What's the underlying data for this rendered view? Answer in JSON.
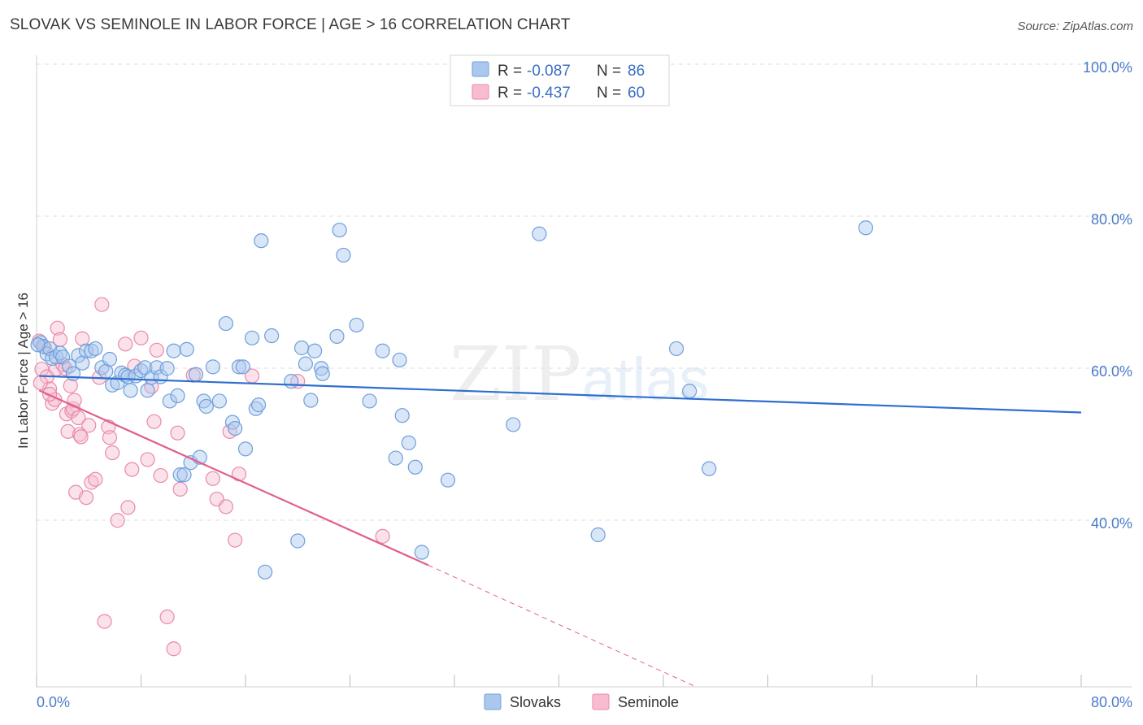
{
  "title": "SLOVAK VS SEMINOLE IN LABOR FORCE | AGE > 16 CORRELATION CHART",
  "source": "Source: ZipAtlas.com",
  "watermark": {
    "zip": "ZIP",
    "atlas": "atlas"
  },
  "colors": {
    "slovaks_fill": "#aac8ee",
    "slovaks_stroke": "#6f9fdc",
    "slovaks_line": "#2f6fd0",
    "seminole_fill": "#f7bcd0",
    "seminole_stroke": "#e88aaa",
    "seminole_line": "#e0608e",
    "tick_color": "#4a7cc9",
    "grid": "#dcdcdc"
  },
  "legend": {
    "rows": [
      {
        "r_label": "R = ",
        "r_value": "-0.087",
        "n_label": "N = ",
        "n_value": "86"
      },
      {
        "r_label": "R = ",
        "r_value": "-0.437",
        "n_label": "N = ",
        "n_value": "60"
      }
    ]
  },
  "bottom_legend": [
    "Slovaks",
    "Seminole"
  ],
  "chart_data": {
    "type": "scatter",
    "title": "SLOVAK VS SEMINOLE IN LABOR FORCE | AGE > 16 CORRELATION CHART",
    "xlabel": "",
    "ylabel": "In Labor Force | Age > 16",
    "xlim": [
      0,
      80
    ],
    "ylim": [
      20,
      100
    ],
    "x_tick_labels": [
      "0.0%",
      "80.0%"
    ],
    "y_ticks": [
      40,
      60,
      80,
      100
    ],
    "y_tick_labels": [
      "40.0%",
      "60.0%",
      "80.0%",
      "100.0%"
    ],
    "series": [
      {
        "name": "Slovaks",
        "r": -0.087,
        "n": 86,
        "trend": {
          "x0": 0.2,
          "y0": 60.9,
          "x1": 80,
          "y1": 56.1
        },
        "points": [
          [
            0.3,
            65.3
          ],
          [
            0.5,
            64.8
          ],
          [
            0.8,
            63.8
          ],
          [
            1.0,
            64.5
          ],
          [
            1.2,
            63.2
          ],
          [
            1.5,
            63.4
          ],
          [
            1.8,
            63.9
          ],
          [
            2.0,
            63.4
          ],
          [
            2.5,
            62.2
          ],
          [
            2.8,
            61.2
          ],
          [
            3.2,
            63.6
          ],
          [
            3.5,
            62.6
          ],
          [
            3.8,
            64.2
          ],
          [
            4.2,
            64.2
          ],
          [
            4.5,
            64.5
          ],
          [
            5.0,
            62.0
          ],
          [
            5.3,
            61.5
          ],
          [
            5.6,
            63.1
          ],
          [
            5.8,
            59.7
          ],
          [
            6.2,
            60.0
          ],
          [
            6.5,
            61.3
          ],
          [
            6.8,
            61.0
          ],
          [
            7.0,
            60.8
          ],
          [
            7.2,
            59.0
          ],
          [
            7.6,
            60.9
          ],
          [
            8.0,
            61.6
          ],
          [
            8.3,
            62.0
          ],
          [
            8.5,
            59.0
          ],
          [
            8.8,
            60.7
          ],
          [
            9.2,
            62.0
          ],
          [
            9.5,
            60.8
          ],
          [
            10.0,
            61.9
          ],
          [
            10.2,
            57.6
          ],
          [
            10.5,
            64.2
          ],
          [
            10.8,
            58.3
          ],
          [
            11.0,
            47.9
          ],
          [
            11.3,
            47.9
          ],
          [
            11.5,
            64.4
          ],
          [
            11.8,
            49.5
          ],
          [
            12.2,
            61.1
          ],
          [
            12.5,
            50.2
          ],
          [
            12.8,
            57.6
          ],
          [
            13.0,
            56.9
          ],
          [
            13.5,
            62.1
          ],
          [
            14.0,
            57.6
          ],
          [
            14.5,
            67.8
          ],
          [
            15.0,
            54.8
          ],
          [
            15.2,
            54.0
          ],
          [
            15.5,
            62.1
          ],
          [
            15.8,
            62.1
          ],
          [
            16.0,
            51.3
          ],
          [
            16.5,
            65.9
          ],
          [
            16.8,
            56.6
          ],
          [
            17.0,
            57.1
          ],
          [
            17.2,
            78.7
          ],
          [
            17.5,
            35.1
          ],
          [
            18.0,
            66.2
          ],
          [
            19.5,
            60.2
          ],
          [
            20.0,
            39.2
          ],
          [
            20.3,
            64.6
          ],
          [
            20.6,
            62.5
          ],
          [
            21.0,
            57.7
          ],
          [
            21.3,
            64.2
          ],
          [
            21.8,
            61.9
          ],
          [
            21.9,
            61.2
          ],
          [
            23.0,
            66.1
          ],
          [
            23.2,
            80.1
          ],
          [
            23.5,
            76.8
          ],
          [
            24.5,
            67.6
          ],
          [
            25.5,
            57.6
          ],
          [
            26.5,
            64.2
          ],
          [
            27.5,
            50.1
          ],
          [
            27.8,
            63.0
          ],
          [
            28.0,
            55.7
          ],
          [
            28.5,
            52.1
          ],
          [
            29.0,
            48.9
          ],
          [
            29.5,
            37.7
          ],
          [
            31.5,
            47.2
          ],
          [
            36.5,
            54.5
          ],
          [
            38.5,
            79.6
          ],
          [
            43.0,
            40.0
          ],
          [
            49.0,
            64.5
          ],
          [
            50.0,
            58.9
          ],
          [
            51.5,
            48.7
          ],
          [
            63.5,
            80.4
          ],
          [
            0.1,
            65.0
          ]
        ]
      },
      {
        "name": "Seminole",
        "r": -0.437,
        "n": 60,
        "trend": {
          "x0": 0.2,
          "y0": 59.0,
          "x1": 30,
          "y1": 36.0,
          "x_dash_end": 50.5,
          "y_dash_end": 20.0
        },
        "points": [
          [
            0.2,
            65.5
          ],
          [
            0.4,
            61.8
          ],
          [
            0.6,
            64.7
          ],
          [
            0.8,
            60.8
          ],
          [
            1.0,
            59.2
          ],
          [
            1.2,
            57.3
          ],
          [
            1.4,
            57.8
          ],
          [
            1.5,
            61.8
          ],
          [
            1.6,
            67.2
          ],
          [
            1.8,
            65.7
          ],
          [
            2.0,
            62.4
          ],
          [
            2.2,
            61.9
          ],
          [
            2.3,
            55.9
          ],
          [
            2.4,
            53.6
          ],
          [
            2.6,
            59.6
          ],
          [
            2.7,
            56.3
          ],
          [
            2.8,
            56.6
          ],
          [
            2.9,
            57.7
          ],
          [
            3.0,
            45.6
          ],
          [
            3.2,
            55.4
          ],
          [
            3.3,
            53.2
          ],
          [
            3.4,
            52.9
          ],
          [
            3.5,
            65.8
          ],
          [
            3.8,
            44.9
          ],
          [
            4.0,
            54.4
          ],
          [
            4.2,
            46.9
          ],
          [
            4.5,
            47.3
          ],
          [
            4.8,
            60.7
          ],
          [
            5.0,
            70.3
          ],
          [
            5.2,
            28.6
          ],
          [
            5.5,
            54.2
          ],
          [
            5.6,
            52.8
          ],
          [
            5.8,
            50.8
          ],
          [
            6.2,
            41.9
          ],
          [
            6.8,
            65.1
          ],
          [
            7.0,
            43.6
          ],
          [
            7.3,
            48.6
          ],
          [
            7.5,
            62.2
          ],
          [
            8.0,
            65.9
          ],
          [
            8.5,
            49.9
          ],
          [
            8.8,
            59.5
          ],
          [
            9.0,
            54.9
          ],
          [
            9.2,
            64.3
          ],
          [
            9.5,
            47.8
          ],
          [
            10.0,
            29.2
          ],
          [
            10.5,
            25.0
          ],
          [
            10.8,
            53.4
          ],
          [
            11.0,
            46.0
          ],
          [
            12.0,
            61.0
          ],
          [
            13.5,
            47.4
          ],
          [
            13.8,
            44.7
          ],
          [
            14.5,
            43.7
          ],
          [
            14.8,
            53.6
          ],
          [
            15.2,
            39.3
          ],
          [
            15.5,
            48.0
          ],
          [
            16.5,
            60.9
          ],
          [
            20.0,
            60.2
          ],
          [
            26.5,
            39.8
          ],
          [
            0.3,
            60.0
          ],
          [
            1.0,
            58.5
          ]
        ]
      }
    ]
  }
}
